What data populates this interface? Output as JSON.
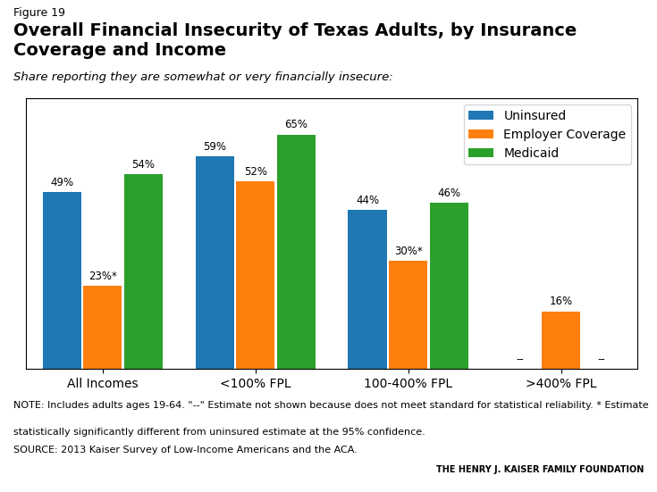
{
  "chart_data": {
    "type": "bar",
    "title": "Overall Financial Insecurity of Texas Adults, by Insurance\nCoverage and Income",
    "subtitle": "Share reporting they are somewhat or very financially insecure:",
    "annotations": [
      "Figure 19",
      "NOTE: Includes adults ages 19-64. \"--\" Estimate not shown because does not meet standard for statistical reliability. * Estimate",
      "statistically significantly different from uninsured estimate at the 95% confidence.",
      "SOURCE: 2013 Kaiser Survey of Low-Income Americans and the ACA.",
      "THE HENRY J. KAISER FAMILY FOUNDATION"
    ],
    "categories": [
      "All Incomes",
      "<100% FPL",
      "100-400% FPL",
      ">400% FPL"
    ],
    "series": [
      {
        "name": "Uninsured",
        "values": [
          49,
          59,
          44,
          null
        ],
        "value_labels": [
          "49%",
          "59%",
          "44%",
          "--"
        ]
      },
      {
        "name": "Employer Coverage",
        "values": [
          23,
          52,
          30,
          16
        ],
        "value_labels": [
          "23%*",
          "52%",
          "30%*",
          "16%"
        ]
      },
      {
        "name": "Medicaid",
        "values": [
          54,
          65,
          46,
          null
        ],
        "value_labels": [
          "54%",
          "65%",
          "46%",
          "--"
        ]
      }
    ],
    "ylim": [
      0,
      75
    ],
    "tick_labels": "x",
    "data_labels": true,
    "legend": "upper right"
  }
}
